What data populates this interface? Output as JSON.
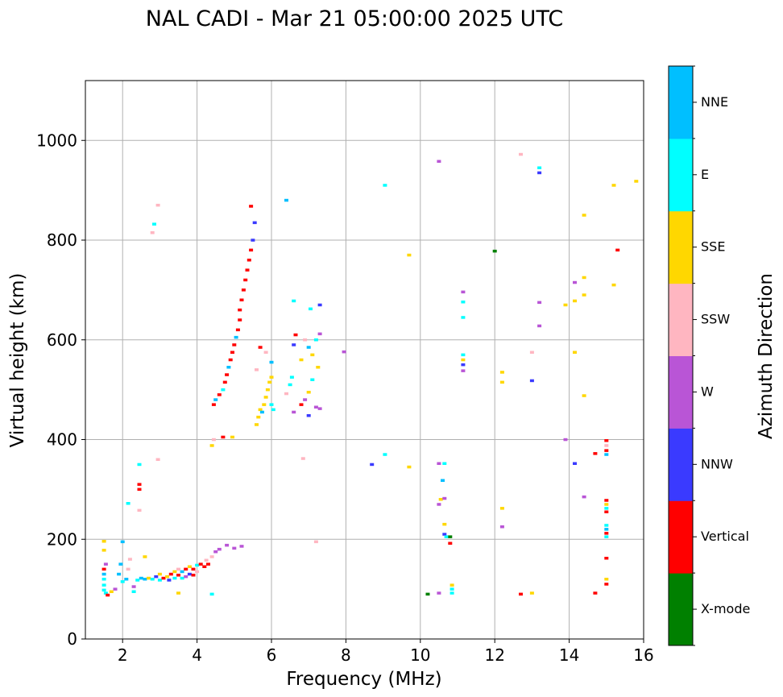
{
  "chart_data": {
    "type": "scatter",
    "title": "NAL CADI - Mar 21 05:00:00 2025 UTC",
    "xlabel": "Frequency (MHz)",
    "ylabel": "Virtual height (km)",
    "xlim": [
      1,
      16
    ],
    "ylim": [
      0,
      1120
    ],
    "xticks": [
      2,
      4,
      6,
      8,
      10,
      12,
      14,
      16
    ],
    "yticks": [
      0,
      200,
      400,
      600,
      800,
      1000
    ],
    "grid": true,
    "colorbar": {
      "label": "Azimuth Direction",
      "categories": [
        {
          "name": "X-mode",
          "color": "#008000"
        },
        {
          "name": "Vertical",
          "color": "#ff0000"
        },
        {
          "name": "NNW",
          "color": "#3a3aff"
        },
        {
          "name": "W",
          "color": "#b955d6"
        },
        {
          "name": "SSW",
          "color": "#ffb6c1"
        },
        {
          "name": "SSE",
          "color": "#ffd700"
        },
        {
          "name": "E",
          "color": "#00ffff"
        },
        {
          "name": "NNE",
          "color": "#00bfff"
        }
      ]
    },
    "points": [
      {
        "f": 1.5,
        "h": 140,
        "c": "Vertical"
      },
      {
        "f": 1.5,
        "h": 130,
        "c": "NNE"
      },
      {
        "f": 1.5,
        "h": 120,
        "c": "E"
      },
      {
        "f": 1.5,
        "h": 108,
        "c": "E"
      },
      {
        "f": 1.5,
        "h": 98,
        "c": "E"
      },
      {
        "f": 1.55,
        "h": 92,
        "c": "E"
      },
      {
        "f": 1.5,
        "h": 178,
        "c": "SSE"
      },
      {
        "f": 1.5,
        "h": 196,
        "c": "SSE"
      },
      {
        "f": 1.55,
        "h": 150,
        "c": "W"
      },
      {
        "f": 1.6,
        "h": 88,
        "c": "Vertical"
      },
      {
        "f": 1.7,
        "h": 95,
        "c": "SSE"
      },
      {
        "f": 1.8,
        "h": 100,
        "c": "W"
      },
      {
        "f": 1.9,
        "h": 130,
        "c": "NNE"
      },
      {
        "f": 1.95,
        "h": 150,
        "c": "NNE"
      },
      {
        "f": 2.0,
        "h": 195,
        "c": "NNE"
      },
      {
        "f": 2.0,
        "h": 115,
        "c": "E"
      },
      {
        "f": 2.1,
        "h": 120,
        "c": "NNE"
      },
      {
        "f": 2.15,
        "h": 140,
        "c": "SSW"
      },
      {
        "f": 2.2,
        "h": 160,
        "c": "SSW"
      },
      {
        "f": 2.3,
        "h": 95,
        "c": "E"
      },
      {
        "f": 2.3,
        "h": 105,
        "c": "W"
      },
      {
        "f": 2.4,
        "h": 118,
        "c": "E"
      },
      {
        "f": 2.5,
        "h": 122,
        "c": "NNE"
      },
      {
        "f": 2.45,
        "h": 350,
        "c": "E"
      },
      {
        "f": 2.45,
        "h": 310,
        "c": "Vertical"
      },
      {
        "f": 2.45,
        "h": 300,
        "c": "Vertical"
      },
      {
        "f": 2.45,
        "h": 258,
        "c": "SSW"
      },
      {
        "f": 2.15,
        "h": 272,
        "c": "E"
      },
      {
        "f": 2.6,
        "h": 120,
        "c": "NNE"
      },
      {
        "f": 2.6,
        "h": 165,
        "c": "SSE"
      },
      {
        "f": 2.7,
        "h": 122,
        "c": "SSE"
      },
      {
        "f": 2.8,
        "h": 120,
        "c": "E"
      },
      {
        "f": 2.8,
        "h": 815,
        "c": "SSW"
      },
      {
        "f": 2.85,
        "h": 832,
        "c": "E"
      },
      {
        "f": 2.95,
        "h": 870,
        "c": "SSW"
      },
      {
        "f": 2.95,
        "h": 360,
        "c": "SSW"
      },
      {
        "f": 2.9,
        "h": 125,
        "c": "NNW"
      },
      {
        "f": 3.0,
        "h": 130,
        "c": "SSE"
      },
      {
        "f": 3.0,
        "h": 118,
        "c": "E"
      },
      {
        "f": 3.1,
        "h": 122,
        "c": "Vertical"
      },
      {
        "f": 3.2,
        "h": 125,
        "c": "SSE"
      },
      {
        "f": 3.25,
        "h": 118,
        "c": "NNW"
      },
      {
        "f": 3.3,
        "h": 130,
        "c": "Vertical"
      },
      {
        "f": 3.4,
        "h": 122,
        "c": "E"
      },
      {
        "f": 3.4,
        "h": 135,
        "c": "SSE"
      },
      {
        "f": 3.5,
        "h": 128,
        "c": "Vertical"
      },
      {
        "f": 3.5,
        "h": 140,
        "c": "SSW"
      },
      {
        "f": 3.6,
        "h": 122,
        "c": "E"
      },
      {
        "f": 3.6,
        "h": 135,
        "c": "NNE"
      },
      {
        "f": 3.7,
        "h": 140,
        "c": "Vertical"
      },
      {
        "f": 3.7,
        "h": 125,
        "c": "W"
      },
      {
        "f": 3.8,
        "h": 130,
        "c": "NNW"
      },
      {
        "f": 3.8,
        "h": 145,
        "c": "SSE"
      },
      {
        "f": 3.9,
        "h": 140,
        "c": "Vertical"
      },
      {
        "f": 3.9,
        "h": 128,
        "c": "Vertical"
      },
      {
        "f": 4.0,
        "h": 148,
        "c": "E"
      },
      {
        "f": 4.0,
        "h": 135,
        "c": "SSW"
      },
      {
        "f": 4.1,
        "h": 150,
        "c": "Vertical"
      },
      {
        "f": 4.2,
        "h": 145,
        "c": "Vertical"
      },
      {
        "f": 4.25,
        "h": 158,
        "c": "SSW"
      },
      {
        "f": 4.3,
        "h": 150,
        "c": "Vertical"
      },
      {
        "f": 4.4,
        "h": 165,
        "c": "SSW"
      },
      {
        "f": 4.5,
        "h": 175,
        "c": "W"
      },
      {
        "f": 4.6,
        "h": 180,
        "c": "W"
      },
      {
        "f": 4.8,
        "h": 188,
        "c": "W"
      },
      {
        "f": 5.0,
        "h": 182,
        "c": "W"
      },
      {
        "f": 5.2,
        "h": 186,
        "c": "W"
      },
      {
        "f": 3.5,
        "h": 92,
        "c": "SSE"
      },
      {
        "f": 4.4,
        "h": 90,
        "c": "E"
      },
      {
        "f": 4.4,
        "h": 388,
        "c": "SSE"
      },
      {
        "f": 4.45,
        "h": 400,
        "c": "SSW"
      },
      {
        "f": 4.7,
        "h": 405,
        "c": "Vertical"
      },
      {
        "f": 4.95,
        "h": 405,
        "c": "SSE"
      },
      {
        "f": 4.45,
        "h": 470,
        "c": "Vertical"
      },
      {
        "f": 4.5,
        "h": 480,
        "c": "NNE"
      },
      {
        "f": 4.6,
        "h": 490,
        "c": "Vertical"
      },
      {
        "f": 4.7,
        "h": 500,
        "c": "E"
      },
      {
        "f": 4.75,
        "h": 515,
        "c": "Vertical"
      },
      {
        "f": 4.8,
        "h": 530,
        "c": "Vertical"
      },
      {
        "f": 4.85,
        "h": 545,
        "c": "NNE"
      },
      {
        "f": 4.9,
        "h": 560,
        "c": "Vertical"
      },
      {
        "f": 4.95,
        "h": 575,
        "c": "Vertical"
      },
      {
        "f": 5.0,
        "h": 590,
        "c": "Vertical"
      },
      {
        "f": 5.05,
        "h": 605,
        "c": "NNE"
      },
      {
        "f": 5.1,
        "h": 620,
        "c": "Vertical"
      },
      {
        "f": 5.15,
        "h": 640,
        "c": "Vertical"
      },
      {
        "f": 5.15,
        "h": 660,
        "c": "Vertical"
      },
      {
        "f": 5.2,
        "h": 680,
        "c": "Vertical"
      },
      {
        "f": 5.25,
        "h": 700,
        "c": "Vertical"
      },
      {
        "f": 5.3,
        "h": 720,
        "c": "Vertical"
      },
      {
        "f": 5.35,
        "h": 740,
        "c": "Vertical"
      },
      {
        "f": 5.4,
        "h": 760,
        "c": "Vertical"
      },
      {
        "f": 5.45,
        "h": 780,
        "c": "Vertical"
      },
      {
        "f": 5.5,
        "h": 800,
        "c": "NNW"
      },
      {
        "f": 5.55,
        "h": 835,
        "c": "NNW"
      },
      {
        "f": 5.45,
        "h": 868,
        "c": "Vertical"
      },
      {
        "f": 5.6,
        "h": 430,
        "c": "SSE"
      },
      {
        "f": 5.65,
        "h": 445,
        "c": "SSE"
      },
      {
        "f": 5.7,
        "h": 460,
        "c": "SSE"
      },
      {
        "f": 5.8,
        "h": 470,
        "c": "SSE"
      },
      {
        "f": 5.85,
        "h": 485,
        "c": "SSE"
      },
      {
        "f": 5.9,
        "h": 500,
        "c": "SSE"
      },
      {
        "f": 5.95,
        "h": 515,
        "c": "SSE"
      },
      {
        "f": 6.0,
        "h": 525,
        "c": "SSE"
      },
      {
        "f": 5.75,
        "h": 455,
        "c": "NNE"
      },
      {
        "f": 6.0,
        "h": 470,
        "c": "E"
      },
      {
        "f": 6.05,
        "h": 460,
        "c": "E"
      },
      {
        "f": 5.6,
        "h": 540,
        "c": "SSW"
      },
      {
        "f": 5.7,
        "h": 585,
        "c": "Vertical"
      },
      {
        "f": 5.85,
        "h": 575,
        "c": "SSW"
      },
      {
        "f": 6.0,
        "h": 555,
        "c": "NNE"
      },
      {
        "f": 6.4,
        "h": 880,
        "c": "NNE"
      },
      {
        "f": 6.6,
        "h": 678,
        "c": "E"
      },
      {
        "f": 6.65,
        "h": 610,
        "c": "Vertical"
      },
      {
        "f": 6.6,
        "h": 590,
        "c": "NNW"
      },
      {
        "f": 6.55,
        "h": 525,
        "c": "E"
      },
      {
        "f": 6.5,
        "h": 510,
        "c": "E"
      },
      {
        "f": 6.4,
        "h": 492,
        "c": "SSW"
      },
      {
        "f": 6.6,
        "h": 455,
        "c": "W"
      },
      {
        "f": 6.8,
        "h": 470,
        "c": "Vertical"
      },
      {
        "f": 6.9,
        "h": 480,
        "c": "W"
      },
      {
        "f": 7.0,
        "h": 495,
        "c": "SSE"
      },
      {
        "f": 7.1,
        "h": 520,
        "c": "E"
      },
      {
        "f": 7.2,
        "h": 465,
        "c": "W"
      },
      {
        "f": 7.3,
        "h": 462,
        "c": "W"
      },
      {
        "f": 7.0,
        "h": 448,
        "c": "NNW"
      },
      {
        "f": 6.8,
        "h": 560,
        "c": "SSE"
      },
      {
        "f": 6.9,
        "h": 600,
        "c": "SSW"
      },
      {
        "f": 7.0,
        "h": 585,
        "c": "NNE"
      },
      {
        "f": 7.1,
        "h": 570,
        "c": "SSE"
      },
      {
        "f": 7.2,
        "h": 600,
        "c": "E"
      },
      {
        "f": 7.25,
        "h": 545,
        "c": "SSE"
      },
      {
        "f": 7.3,
        "h": 612,
        "c": "W"
      },
      {
        "f": 7.3,
        "h": 670,
        "c": "NNW"
      },
      {
        "f": 7.05,
        "h": 662,
        "c": "E"
      },
      {
        "f": 6.85,
        "h": 362,
        "c": "SSW"
      },
      {
        "f": 7.2,
        "h": 195,
        "c": "SSW"
      },
      {
        "f": 7.95,
        "h": 576,
        "c": "W"
      },
      {
        "f": 8.7,
        "h": 350,
        "c": "NNW"
      },
      {
        "f": 9.05,
        "h": 370,
        "c": "E"
      },
      {
        "f": 9.05,
        "h": 910,
        "c": "E"
      },
      {
        "f": 9.7,
        "h": 770,
        "c": "SSE"
      },
      {
        "f": 9.7,
        "h": 345,
        "c": "SSE"
      },
      {
        "f": 10.2,
        "h": 90,
        "c": "X-mode"
      },
      {
        "f": 10.5,
        "h": 958,
        "c": "W"
      },
      {
        "f": 10.5,
        "h": 92,
        "c": "W"
      },
      {
        "f": 10.5,
        "h": 352,
        "c": "W"
      },
      {
        "f": 10.65,
        "h": 352,
        "c": "E"
      },
      {
        "f": 10.6,
        "h": 318,
        "c": "NNE"
      },
      {
        "f": 10.5,
        "h": 270,
        "c": "W"
      },
      {
        "f": 10.55,
        "h": 280,
        "c": "SSE"
      },
      {
        "f": 10.65,
        "h": 282,
        "c": "W"
      },
      {
        "f": 10.65,
        "h": 230,
        "c": "SSE"
      },
      {
        "f": 10.65,
        "h": 210,
        "c": "NNW"
      },
      {
        "f": 10.7,
        "h": 205,
        "c": "E"
      },
      {
        "f": 10.8,
        "h": 205,
        "c": "X-mode"
      },
      {
        "f": 10.8,
        "h": 192,
        "c": "Vertical"
      },
      {
        "f": 10.85,
        "h": 108,
        "c": "SSE"
      },
      {
        "f": 10.85,
        "h": 100,
        "c": "E"
      },
      {
        "f": 10.85,
        "h": 92,
        "c": "E"
      },
      {
        "f": 11.15,
        "h": 696,
        "c": "W"
      },
      {
        "f": 11.15,
        "h": 676,
        "c": "E"
      },
      {
        "f": 11.15,
        "h": 645,
        "c": "E"
      },
      {
        "f": 11.15,
        "h": 570,
        "c": "E"
      },
      {
        "f": 11.15,
        "h": 560,
        "c": "SSE"
      },
      {
        "f": 11.15,
        "h": 550,
        "c": "NNW"
      },
      {
        "f": 11.15,
        "h": 538,
        "c": "W"
      },
      {
        "f": 12.0,
        "h": 778,
        "c": "X-mode"
      },
      {
        "f": 12.2,
        "h": 535,
        "c": "SSE"
      },
      {
        "f": 12.2,
        "h": 515,
        "c": "SSE"
      },
      {
        "f": 12.2,
        "h": 262,
        "c": "SSE"
      },
      {
        "f": 12.2,
        "h": 225,
        "c": "W"
      },
      {
        "f": 12.7,
        "h": 972,
        "c": "SSW"
      },
      {
        "f": 12.7,
        "h": 90,
        "c": "Vertical"
      },
      {
        "f": 13.0,
        "h": 92,
        "c": "SSE"
      },
      {
        "f": 13.0,
        "h": 575,
        "c": "SSW"
      },
      {
        "f": 13.0,
        "h": 518,
        "c": "NNW"
      },
      {
        "f": 13.2,
        "h": 945,
        "c": "E"
      },
      {
        "f": 13.2,
        "h": 935,
        "c": "NNW"
      },
      {
        "f": 13.2,
        "h": 675,
        "c": "W"
      },
      {
        "f": 13.2,
        "h": 628,
        "c": "W"
      },
      {
        "f": 13.9,
        "h": 670,
        "c": "SSE"
      },
      {
        "f": 13.9,
        "h": 400,
        "c": "W"
      },
      {
        "f": 14.15,
        "h": 715,
        "c": "W"
      },
      {
        "f": 14.15,
        "h": 678,
        "c": "SSE"
      },
      {
        "f": 14.15,
        "h": 575,
        "c": "SSE"
      },
      {
        "f": 14.15,
        "h": 352,
        "c": "NNW"
      },
      {
        "f": 14.4,
        "h": 850,
        "c": "SSE"
      },
      {
        "f": 14.4,
        "h": 725,
        "c": "SSE"
      },
      {
        "f": 14.4,
        "h": 690,
        "c": "SSE"
      },
      {
        "f": 14.4,
        "h": 488,
        "c": "SSE"
      },
      {
        "f": 14.4,
        "h": 285,
        "c": "W"
      },
      {
        "f": 14.7,
        "h": 372,
        "c": "Vertical"
      },
      {
        "f": 14.7,
        "h": 92,
        "c": "Vertical"
      },
      {
        "f": 15.0,
        "h": 398,
        "c": "Vertical"
      },
      {
        "f": 15.0,
        "h": 388,
        "c": "SSW"
      },
      {
        "f": 15.0,
        "h": 378,
        "c": "Vertical"
      },
      {
        "f": 15.0,
        "h": 370,
        "c": "NNE"
      },
      {
        "f": 15.0,
        "h": 278,
        "c": "Vertical"
      },
      {
        "f": 15.0,
        "h": 270,
        "c": "SSE"
      },
      {
        "f": 15.0,
        "h": 262,
        "c": "E"
      },
      {
        "f": 15.0,
        "h": 255,
        "c": "Vertical"
      },
      {
        "f": 15.0,
        "h": 228,
        "c": "E"
      },
      {
        "f": 15.0,
        "h": 220,
        "c": "NNE"
      },
      {
        "f": 15.0,
        "h": 212,
        "c": "Vertical"
      },
      {
        "f": 15.0,
        "h": 205,
        "c": "E"
      },
      {
        "f": 15.0,
        "h": 162,
        "c": "Vertical"
      },
      {
        "f": 15.0,
        "h": 120,
        "c": "SSE"
      },
      {
        "f": 15.0,
        "h": 110,
        "c": "Vertical"
      },
      {
        "f": 15.2,
        "h": 910,
        "c": "SSE"
      },
      {
        "f": 15.2,
        "h": 710,
        "c": "SSE"
      },
      {
        "f": 15.3,
        "h": 780,
        "c": "Vertical"
      },
      {
        "f": 15.8,
        "h": 918,
        "c": "SSE"
      }
    ]
  }
}
